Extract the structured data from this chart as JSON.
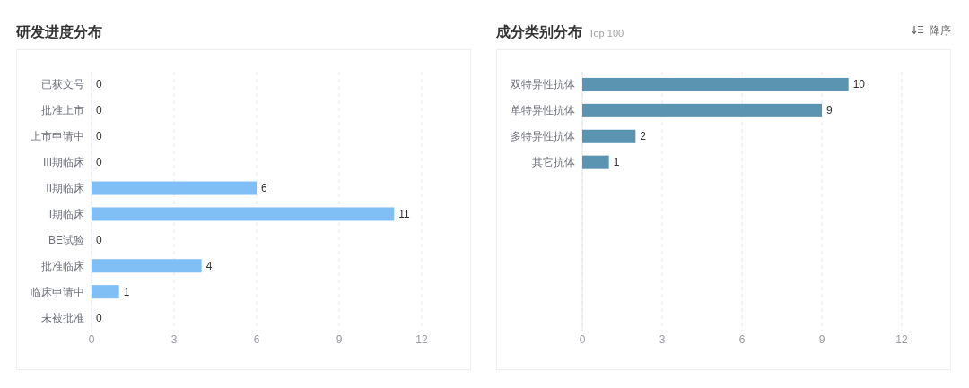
{
  "chart_data": [
    {
      "type": "bar",
      "orientation": "horizontal",
      "title": "研发进度分布",
      "categories": [
        "已获文号",
        "批准上市",
        "上市申请中",
        "III期临床",
        "II期临床",
        "I期临床",
        "BE试验",
        "批准临床",
        "临床申请中",
        "未被批准"
      ],
      "values": [
        0,
        0,
        0,
        0,
        6,
        11,
        0,
        4,
        1,
        0
      ],
      "color": "#80bff5",
      "xlim": [
        0,
        12
      ],
      "xticks": [
        0,
        3,
        6,
        9,
        12
      ],
      "grid": "x",
      "data_labels": true
    },
    {
      "type": "bar",
      "orientation": "horizontal",
      "title": "成分类别分布",
      "subtitle": "Top 100",
      "annotations": [
        "降序"
      ],
      "categories": [
        "双特异性抗体",
        "单特异性抗体",
        "多特异性抗体",
        "其它抗体",
        null,
        null,
        null,
        null,
        null,
        null
      ],
      "values": [
        10,
        9,
        2,
        1,
        null,
        null,
        null,
        null,
        null,
        null
      ],
      "color": "#5a94b1",
      "xlim": [
        0,
        12
      ],
      "xticks": [
        0,
        3,
        6,
        9,
        12
      ],
      "grid": "x",
      "data_labels": true
    }
  ]
}
